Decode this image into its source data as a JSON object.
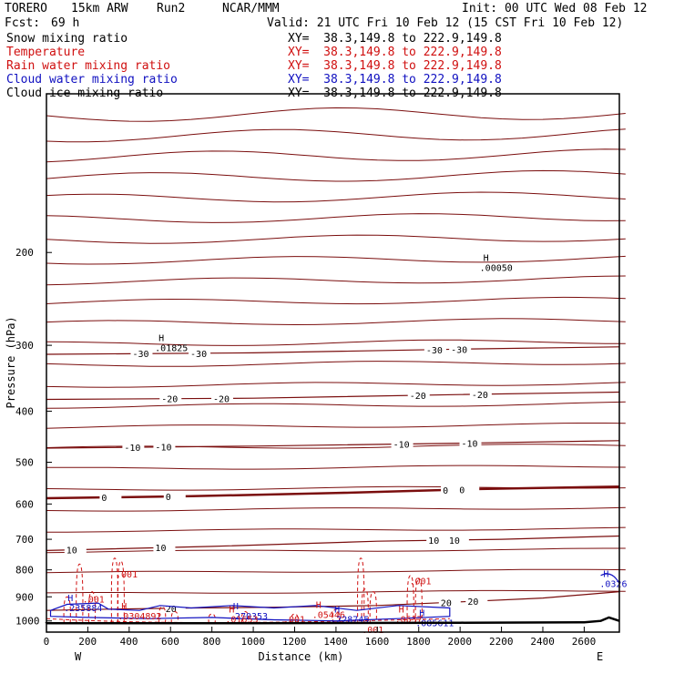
{
  "header": {
    "model_id": "TORERO",
    "model_res": "15km ARW",
    "run": "Run2",
    "org": "NCAR/MMM",
    "init": "Init: 00 UTC Wed 08 Feb 12",
    "fcst": "Fcst:",
    "fcst_hours": "69 h",
    "valid": "Valid: 21 UTC Fri 10 Feb 12 (15 CST Fri 10 Feb 12)"
  },
  "legend": [
    {
      "name": "Snow mixing ratio",
      "xy": "XY=  38.3,149.8 to 222.9,149.8",
      "color": "#000000"
    },
    {
      "name": "Temperature",
      "xy": "XY=  38.3,149.8 to 222.9,149.8",
      "color": "#d01010"
    },
    {
      "name": "Rain water mixing ratio",
      "xy": "XY=  38.3,149.8 to 222.9,149.8",
      "color": "#d01010"
    },
    {
      "name": "Cloud water mixing ratio",
      "xy": "XY=  38.3,149.8 to 222.9,149.8",
      "color": "#1010c0"
    },
    {
      "name": "Cloud ice mixing ratio",
      "xy": "XY=  38.3,149.8 to 222.9,149.8",
      "color": "#000000"
    }
  ],
  "chart_data": {
    "type": "cross-section contour",
    "xlabel": "Distance (km)",
    "ylabel": "Pressure (hPa)",
    "xlim": [
      0,
      2770
    ],
    "ylim": [
      1050,
      100
    ],
    "y_scale": "log",
    "x_ticks": [
      0,
      200,
      400,
      600,
      800,
      1000,
      1200,
      1400,
      1600,
      1800,
      2000,
      2200,
      2400,
      2600
    ],
    "y_ticks": [
      200,
      300,
      400,
      500,
      600,
      700,
      800,
      900,
      1000
    ],
    "endpoint_labels": {
      "left": "W",
      "right": "E"
    },
    "temperature_label_colors": {
      "isotherm": "#800000",
      "zero_isotherm": "#800000"
    },
    "isotherms": [
      {
        "value": -30,
        "points": [
          [
            0,
            312
          ],
          [
            1000,
            310
          ],
          [
            2000,
            305
          ],
          [
            2770,
            302
          ]
        ],
        "labels": [
          [
            460,
            "-30"
          ],
          [
            740,
            "-30"
          ],
          [
            1880,
            "-30"
          ],
          [
            2000,
            "-30"
          ]
        ]
      },
      {
        "value": -20,
        "points": [
          [
            0,
            380
          ],
          [
            1000,
            378
          ],
          [
            2000,
            372
          ],
          [
            2770,
            368
          ]
        ],
        "labels": [
          [
            600,
            "-20"
          ],
          [
            850,
            "-20"
          ],
          [
            1800,
            "-20"
          ],
          [
            2100,
            "-20"
          ]
        ]
      },
      {
        "value": -10,
        "points": [
          [
            0,
            470
          ],
          [
            1000,
            466
          ],
          [
            2000,
            460
          ],
          [
            2770,
            455
          ]
        ],
        "labels": [
          [
            420,
            "-10"
          ],
          [
            570,
            "-10"
          ],
          [
            1720,
            "-10"
          ],
          [
            2050,
            "-10"
          ]
        ]
      },
      {
        "value": 0,
        "points": [
          [
            0,
            585
          ],
          [
            700,
            580
          ],
          [
            1400,
            572
          ],
          [
            2100,
            562
          ],
          [
            2770,
            556
          ]
        ],
        "labels": [
          [
            310,
            "0"
          ],
          [
            620,
            "0"
          ],
          [
            1960,
            "0"
          ],
          [
            2040,
            "0"
          ]
        ]
      },
      {
        "value": 10,
        "points": [
          [
            0,
            735
          ],
          [
            800,
            722
          ],
          [
            1600,
            706
          ],
          [
            2200,
            700
          ],
          [
            2770,
            690
          ]
        ],
        "labels": [
          [
            140,
            "10"
          ],
          [
            570,
            "10"
          ],
          [
            1890,
            "10"
          ],
          [
            1990,
            "10"
          ]
        ]
      },
      {
        "value": 20,
        "points": [
          [
            0,
            955
          ],
          [
            300,
            950
          ],
          [
            700,
            945
          ],
          [
            1100,
            942
          ],
          [
            1600,
            935
          ],
          [
            2000,
            920
          ],
          [
            2400,
            905
          ],
          [
            2770,
            880
          ]
        ],
        "labels": [
          [
            620,
            "20"
          ],
          [
            1950,
            "20"
          ],
          [
            2080,
            "20"
          ]
        ]
      }
    ],
    "max_labels": [
      {
        "x": 2130,
        "p": 215,
        "text": ".00050"
      },
      {
        "x": 560,
        "p": 305,
        "text": ".01825"
      },
      {
        "x": 120,
        "p": 950,
        "text": ".235884"
      },
      {
        "x": 380,
        "p": 985,
        "text": ".0304892"
      },
      {
        "x": 920,
        "p": 985,
        "text": ".270353"
      },
      {
        "x": 900,
        "p": 1000,
        "text": ".01653"
      },
      {
        "x": 1180,
        "p": 1000,
        "text": ".001"
      },
      {
        "x": 1320,
        "p": 980,
        "text": ".05446"
      },
      {
        "x": 1410,
        "p": 1000,
        "text": ".228745"
      },
      {
        "x": 1720,
        "p": 1000,
        "text": ".0537"
      },
      {
        "x": 1820,
        "p": 1015,
        "text": ".085611"
      },
      {
        "x": 2710,
        "p": 855,
        "text": ".0326"
      },
      {
        "x": 370,
        "p": 820,
        "text": ".001"
      },
      {
        "x": 1790,
        "p": 845,
        "text": ".001"
      },
      {
        "x": 210,
        "p": 915,
        "text": ".001"
      },
      {
        "x": 1560,
        "p": 1045,
        "text": ".001"
      }
    ]
  }
}
